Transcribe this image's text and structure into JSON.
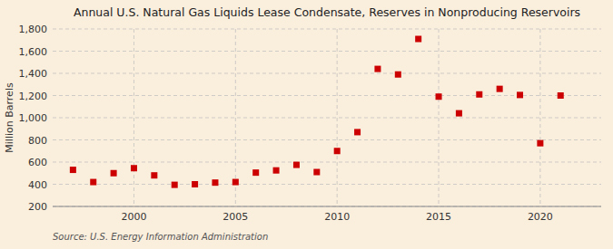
{
  "chart_data": {
    "type": "scatter",
    "title": "Annual U.S. Natural Gas Liquids Lease Condensate, Reserves in Nonproducing Reservoirs",
    "ylabel": "Million Barrels",
    "source": "Source: U.S. Energy Information Administration",
    "x": [
      1997,
      1998,
      1999,
      2000,
      2001,
      2002,
      2003,
      2004,
      2005,
      2006,
      2007,
      2008,
      2009,
      2010,
      2011,
      2012,
      2013,
      2014,
      2015,
      2016,
      2017,
      2018,
      2019,
      2020,
      2021
    ],
    "values": [
      530,
      420,
      500,
      545,
      480,
      395,
      400,
      415,
      420,
      505,
      525,
      575,
      510,
      700,
      870,
      1440,
      1390,
      1710,
      1190,
      1040,
      1210,
      1260,
      1205,
      770,
      1200
    ],
    "color": "#cc0000",
    "marker": "square",
    "xlim": [
      1996,
      2023
    ],
    "xticks": [
      2000,
      2005,
      2010,
      2015,
      2020
    ],
    "ylim": [
      200,
      1800
    ],
    "yticks": [
      200,
      400,
      600,
      800,
      {
        "value": 1000,
        "label": "1,000"
      },
      {
        "value": 1200,
        "label": "1,200"
      },
      {
        "value": 1400,
        "label": "1,400"
      },
      {
        "value": 1600,
        "label": "1,600"
      },
      {
        "value": 1800,
        "label": "1,800"
      }
    ],
    "grid": true
  }
}
